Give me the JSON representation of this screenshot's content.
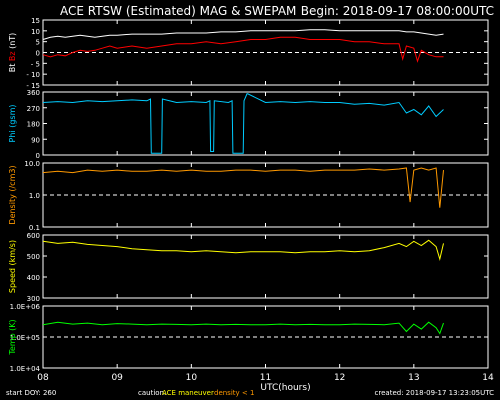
{
  "header": {
    "title": "ACE RTSW (Estimated) MAG & SWEPAM",
    "begin": "Begin: 2018-09-17 08:00:00UTC"
  },
  "footer": {
    "start_doy": "start DOY: 260",
    "caution": "caution:",
    "maneuver": "ACE maneuver",
    "density_note": "density < 1",
    "created": "created: 2018-09-17 13:23:05UTC"
  },
  "colors": {
    "bt": "#ffffff",
    "bz": "#ff0000",
    "phi": "#00ccff",
    "density": "#ff9900",
    "speed": "#ffff00",
    "temp": "#00ff00",
    "axes": "#ffffff",
    "background": "#000000"
  },
  "chart_data": {
    "type": "line",
    "xlabel": "UTC(hours)",
    "x_ticks": [
      "08",
      "09",
      "10",
      "11",
      "12",
      "13",
      "14"
    ],
    "xlim": [
      8,
      14
    ],
    "panels": [
      {
        "id": "mag",
        "ylabel_parts": [
          {
            "text": "Bt",
            "color": "#ffffff"
          },
          {
            "text": "Bz",
            "color": "#ff0000"
          },
          {
            "text": "(nT)",
            "color": "#ffffff"
          }
        ],
        "ylim": [
          -15,
          15
        ],
        "yticks": [
          -15,
          -10,
          -5,
          0,
          5,
          10,
          15
        ],
        "ytick_labels": [
          "- 15",
          "- 10",
          "- 5",
          "0",
          "5",
          "10",
          "15"
        ],
        "scale": "linear",
        "dashed_ref": 0,
        "series": [
          {
            "key": "bt",
            "x": [
              8.0,
              8.1,
              8.2,
              8.3,
              8.4,
              8.5,
              8.6,
              8.7,
              8.8,
              8.9,
              9.0,
              9.2,
              9.4,
              9.6,
              9.8,
              10.0,
              10.2,
              10.4,
              10.6,
              10.8,
              11.0,
              11.2,
              11.4,
              11.6,
              11.8,
              12.0,
              12.2,
              12.4,
              12.6,
              12.8,
              12.9,
              13.0,
              13.1,
              13.2,
              13.3,
              13.4
            ],
            "y": [
              6,
              7,
              7.5,
              7,
              7.5,
              8,
              7.5,
              7,
              7.5,
              8,
              8,
              8.5,
              8.5,
              8.5,
              9,
              9,
              9,
              9.5,
              9.5,
              10,
              10,
              10,
              10,
              10.5,
              10.5,
              10,
              10,
              10,
              10,
              10,
              9.5,
              9.5,
              9,
              8.5,
              8,
              8.5
            ]
          },
          {
            "key": "bz",
            "x": [
              8.0,
              8.1,
              8.2,
              8.3,
              8.4,
              8.5,
              8.6,
              8.7,
              8.8,
              8.9,
              9.0,
              9.2,
              9.4,
              9.6,
              9.8,
              10.0,
              10.2,
              10.4,
              10.6,
              10.8,
              11.0,
              11.2,
              11.4,
              11.6,
              11.8,
              12.0,
              12.2,
              12.4,
              12.6,
              12.8,
              12.85,
              12.9,
              13.0,
              13.05,
              13.1,
              13.2,
              13.3,
              13.4
            ],
            "y": [
              -1,
              -2,
              -1,
              -1.5,
              0,
              1,
              0.5,
              1,
              2,
              3,
              2,
              3,
              2,
              3,
              4,
              4,
              5,
              4,
              5,
              6,
              6,
              7,
              7,
              6,
              6,
              6,
              5,
              5,
              4,
              4,
              -3,
              3,
              2,
              -4,
              1,
              -1,
              -2,
              -2
            ]
          }
        ]
      },
      {
        "id": "phi",
        "ylabel_parts": [
          {
            "text": "Phi",
            "color": "#00ccff"
          },
          {
            "text": "(gsm)",
            "color": "#00ccff"
          }
        ],
        "ylim": [
          0,
          360
        ],
        "yticks": [
          0,
          90,
          180,
          270,
          360
        ],
        "ytick_labels": [
          "0",
          "90",
          "180",
          "270",
          "360"
        ],
        "scale": "linear",
        "series": [
          {
            "key": "phi",
            "x": [
              8.0,
              8.2,
              8.4,
              8.6,
              8.8,
              9.0,
              9.2,
              9.4,
              9.45,
              9.46,
              9.6,
              9.61,
              9.8,
              10.0,
              10.2,
              10.25,
              10.26,
              10.3,
              10.31,
              10.5,
              10.55,
              10.56,
              10.7,
              10.71,
              10.75,
              10.76,
              11.0,
              11.2,
              11.4,
              11.6,
              11.8,
              12.0,
              12.2,
              12.4,
              12.6,
              12.8,
              12.9,
              13.0,
              13.1,
              13.2,
              13.3,
              13.4
            ],
            "y": [
              300,
              305,
              300,
              310,
              305,
              310,
              315,
              310,
              320,
              10,
              10,
              320,
              300,
              305,
              300,
              310,
              20,
              20,
              310,
              300,
              310,
              10,
              10,
              310,
              350,
              350,
              300,
              305,
              300,
              305,
              300,
              300,
              290,
              295,
              285,
              300,
              240,
              260,
              230,
              280,
              220,
              260
            ]
          }
        ]
      },
      {
        "id": "density",
        "ylabel_parts": [
          {
            "text": "Density",
            "color": "#ff9900"
          },
          {
            "text": "(/cm3)",
            "color": "#ff9900"
          }
        ],
        "ylim": [
          0.1,
          10.0
        ],
        "yticks": [
          0.1,
          1.0,
          10.0
        ],
        "ytick_labels": [
          "0.1",
          "1.0",
          "10.0"
        ],
        "scale": "log",
        "dashed_ref": 1.0,
        "series": [
          {
            "key": "density",
            "x": [
              8.0,
              8.2,
              8.4,
              8.6,
              8.8,
              9.0,
              9.2,
              9.4,
              9.6,
              9.8,
              10.0,
              10.2,
              10.4,
              10.6,
              10.8,
              11.0,
              11.2,
              11.4,
              11.6,
              11.8,
              12.0,
              12.2,
              12.4,
              12.6,
              12.8,
              12.9,
              12.95,
              13.0,
              13.1,
              13.2,
              13.3,
              13.35,
              13.4
            ],
            "y": [
              5,
              5.5,
              5,
              6,
              5.5,
              6,
              5.5,
              5.5,
              6,
              5.5,
              6,
              5.5,
              5.5,
              6,
              6,
              5.5,
              6,
              6,
              5.5,
              6,
              6,
              6,
              6.5,
              6,
              6.5,
              7,
              0.6,
              6,
              7,
              6,
              7,
              0.4,
              6
            ]
          }
        ]
      },
      {
        "id": "speed",
        "ylabel_parts": [
          {
            "text": "Speed",
            "color": "#ffff00"
          },
          {
            "text": "(km/s)",
            "color": "#ffff00"
          }
        ],
        "ylim": [
          300,
          600
        ],
        "yticks": [
          300,
          400,
          500,
          600
        ],
        "ytick_labels": [
          "300",
          "400",
          "500",
          "600"
        ],
        "scale": "linear",
        "series": [
          {
            "key": "speed",
            "x": [
              8.0,
              8.2,
              8.4,
              8.6,
              8.8,
              9.0,
              9.2,
              9.4,
              9.6,
              9.8,
              10.0,
              10.2,
              10.4,
              10.6,
              10.8,
              11.0,
              11.2,
              11.4,
              11.6,
              11.8,
              12.0,
              12.2,
              12.4,
              12.6,
              12.8,
              12.9,
              13.0,
              13.1,
              13.2,
              13.3,
              13.35,
              13.4
            ],
            "y": [
              570,
              560,
              565,
              555,
              550,
              545,
              535,
              530,
              525,
              525,
              520,
              525,
              520,
              515,
              520,
              520,
              520,
              515,
              520,
              520,
              525,
              520,
              525,
              540,
              560,
              545,
              570,
              550,
              575,
              545,
              485,
              560
            ]
          }
        ]
      },
      {
        "id": "temp",
        "ylabel_parts": [
          {
            "text": "Temp",
            "color": "#00ff00"
          },
          {
            "text": "(K)",
            "color": "#00ff00"
          }
        ],
        "ylim": [
          10000,
          1000000
        ],
        "yticks": [
          10000,
          100000,
          1000000
        ],
        "ytick_labels": [
          "1.0E+04",
          "1.0E+05",
          "1.0E+06"
        ],
        "scale": "log",
        "dashed_ref": 100000,
        "series": [
          {
            "key": "temp",
            "x": [
              8.0,
              8.2,
              8.4,
              8.6,
              8.8,
              9.0,
              9.2,
              9.4,
              9.6,
              9.8,
              10.0,
              10.2,
              10.4,
              10.6,
              10.8,
              11.0,
              11.2,
              11.4,
              11.6,
              11.8,
              12.0,
              12.2,
              12.4,
              12.6,
              12.8,
              12.9,
              13.0,
              13.1,
              13.2,
              13.3,
              13.35,
              13.4
            ],
            "y": [
              250000,
              300000,
              260000,
              280000,
              250000,
              270000,
              260000,
              250000,
              260000,
              255000,
              250000,
              260000,
              250000,
              255000,
              250000,
              250000,
              260000,
              250000,
              255000,
              250000,
              250000,
              260000,
              255000,
              250000,
              280000,
              150000,
              260000,
              180000,
              300000,
              200000,
              130000,
              280000
            ]
          }
        ]
      }
    ]
  }
}
